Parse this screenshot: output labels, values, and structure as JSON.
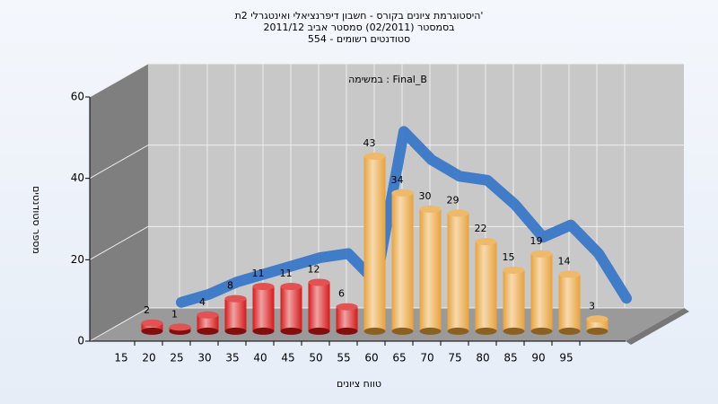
{
  "chart_data": {
    "type": "bar",
    "title": "היסטוגרמת ציונים בקורס - חשבון דיפרנציאלי ואינטגרלי 2ת'",
    "subtitle": "בסמסטר (02/2011) סמסטר אביב 2011/12",
    "subtitle2": "סטודנטים רשומים - 554",
    "annotation": "במשימה : Final_B",
    "x_label": "טווח ציונים",
    "y_label": "מספר סטודנטים",
    "categories": [
      "15",
      "20",
      "25",
      "30",
      "35",
      "40",
      "45",
      "50",
      "55",
      "60",
      "65",
      "70",
      "75",
      "80",
      "85",
      "90",
      "95"
    ],
    "values": [
      2,
      1,
      4,
      8,
      11,
      11,
      12,
      6,
      43,
      34,
      30,
      29,
      22,
      15,
      19,
      14,
      3
    ],
    "colors": [
      "#d81818",
      "#d81818",
      "#d81818",
      "#d81818",
      "#d81818",
      "#d81818",
      "#d81818",
      "#d81818",
      "#e8a23a",
      "#e8a23a",
      "#e8a23a",
      "#e8a23a",
      "#e8a23a",
      "#e8a23a",
      "#e8a23a",
      "#e8a23a",
      "#e8a23a"
    ],
    "curve": {
      "color": "#3a78c8",
      "values": [
        3,
        5,
        8,
        10,
        12,
        14,
        15,
        8,
        45,
        38,
        34,
        33,
        27,
        19,
        22,
        15,
        4
      ]
    },
    "ylim": [
      0,
      60
    ],
    "yticks": [
      0,
      20,
      40,
      60
    ],
    "grid": true
  }
}
